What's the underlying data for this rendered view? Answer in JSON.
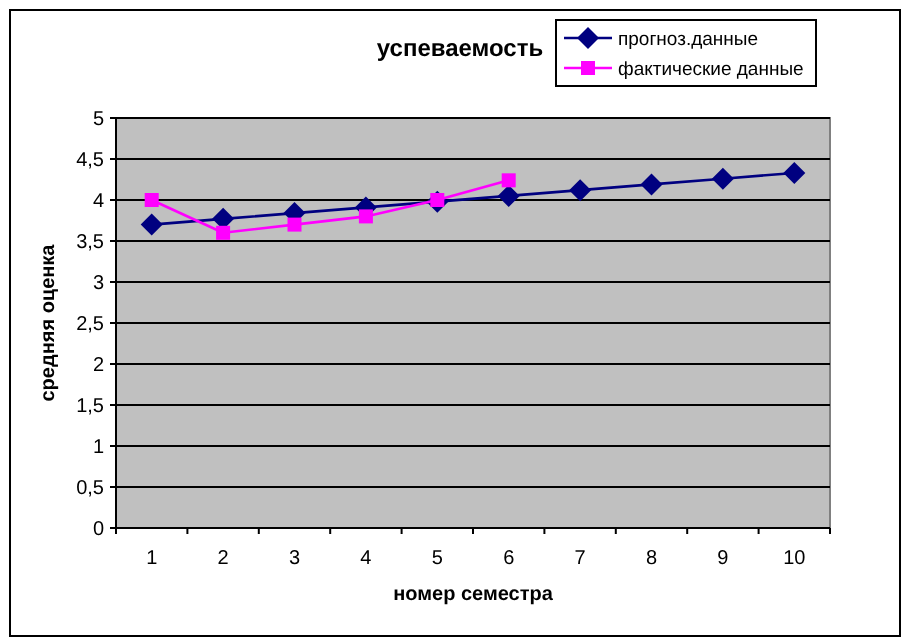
{
  "chart_data": {
    "type": "line",
    "title": "успеваемость",
    "xlabel": "номер семестра",
    "ylabel": "средняя оценка",
    "categories": [
      "1",
      "2",
      "3",
      "4",
      "5",
      "6",
      "7",
      "8",
      "9",
      "10"
    ],
    "series": [
      {
        "name": "прогноз.данные",
        "color": "#000080",
        "marker": "diamond",
        "values": [
          3.7,
          3.77,
          3.84,
          3.91,
          3.98,
          4.05,
          4.12,
          4.19,
          4.26,
          4.33
        ]
      },
      {
        "name": "фактические данные",
        "color": "#ff00ff",
        "marker": "square",
        "values": [
          4.0,
          3.6,
          3.7,
          3.8,
          4.0,
          4.24,
          null,
          null,
          null,
          null
        ]
      }
    ],
    "ylim": [
      0,
      5
    ],
    "yticks": [
      {
        "value": 0,
        "label": "0"
      },
      {
        "value": 0.5,
        "label": "0,5"
      },
      {
        "value": 1,
        "label": "1"
      },
      {
        "value": 1.5,
        "label": "1,5"
      },
      {
        "value": 2,
        "label": "2"
      },
      {
        "value": 2.5,
        "label": "2,5"
      },
      {
        "value": 3,
        "label": "3"
      },
      {
        "value": 3.5,
        "label": "3,5"
      },
      {
        "value": 4,
        "label": "4"
      },
      {
        "value": 4.5,
        "label": "4,5"
      },
      {
        "value": 5,
        "label": "5"
      }
    ],
    "grid": "y",
    "legend": "top right"
  }
}
